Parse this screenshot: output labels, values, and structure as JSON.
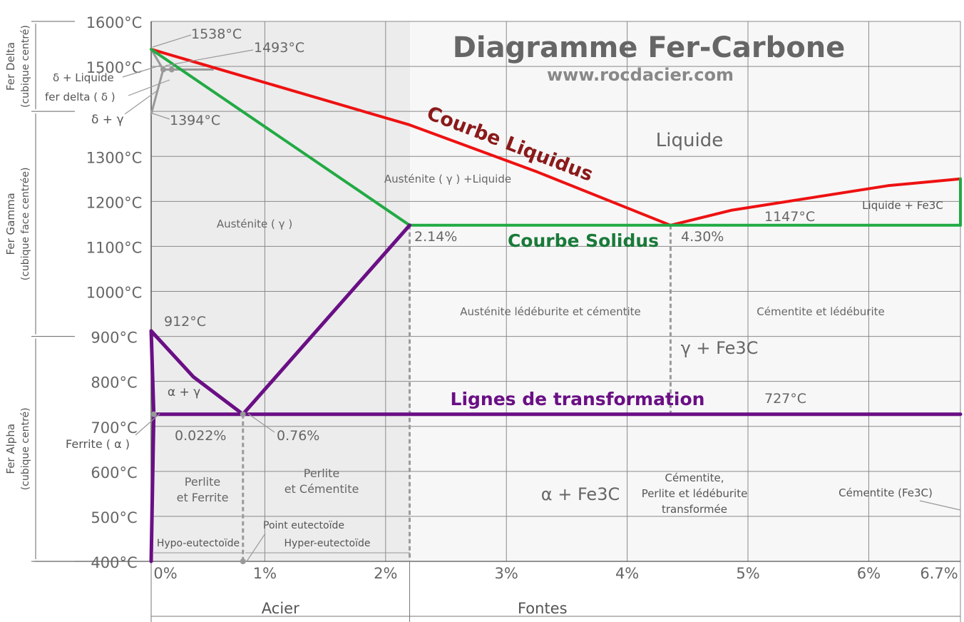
{
  "title": "Diagramme Fer-Carbone",
  "website": "www.rocdacier.com",
  "axis": {
    "x_min": 0,
    "x_max": 6.7,
    "y_min": 400,
    "y_max": 1600,
    "y_ticks": [
      {
        "value": 1600,
        "label": "1600°C"
      },
      {
        "value": 1500,
        "label": "1500°C"
      },
      {
        "value": 1300,
        "label": "1300°C"
      },
      {
        "value": 1200,
        "label": "1200°C"
      },
      {
        "value": 1100,
        "label": "1100°C"
      },
      {
        "value": 1000,
        "label": "1000°C"
      },
      {
        "value": 900,
        "label": "900°C"
      },
      {
        "value": 800,
        "label": "800°C"
      },
      {
        "value": 700,
        "label": "700°C"
      },
      {
        "value": 600,
        "label": "600°C"
      },
      {
        "value": 500,
        "label": "500°C"
      },
      {
        "value": 400,
        "label": "400°C"
      }
    ],
    "x_ticks": [
      {
        "value": 0,
        "label": "0%"
      },
      {
        "value": 1,
        "label": "1%"
      },
      {
        "value": 2,
        "label": "2%"
      },
      {
        "value": 3,
        "label": "3%"
      },
      {
        "value": 4,
        "label": "4%"
      },
      {
        "value": 5,
        "label": "5%"
      },
      {
        "value": 6,
        "label": "6%"
      },
      {
        "value": 6.7,
        "label": "6.7%"
      }
    ]
  },
  "phases_side": [
    {
      "line1": "Fer Delta",
      "line2": "(cubique centré)",
      "from": 1400,
      "to": 1600
    },
    {
      "line1": "Fer Gamma",
      "line2": "(cubique face centrée)",
      "from": 900,
      "to": 1400
    },
    {
      "line1": "Fer Alpha",
      "line2": "(cubique centré)",
      "from": 400,
      "to": 900
    }
  ],
  "bottom_ranges": [
    {
      "label": "Acier",
      "from": 0,
      "to": 2.14
    },
    {
      "label": "Fontes",
      "from": 2.14,
      "to": 6.7
    }
  ],
  "curve_labels": {
    "liquidus": "Courbe Liquidus",
    "solidus": "Courbe Solidus",
    "transformation": "Lignes de transformation"
  },
  "colors": {
    "liquidus": "#ee1111",
    "solidus": "#22aa44",
    "transformation": "#6a0f85",
    "liquidus_label": "#8b1a1a",
    "solidus_label": "#1a7a3a",
    "title": "#666666",
    "grey_lines": "#999999",
    "dashes": "#9a9a9a"
  },
  "curves": {
    "liquidus": [
      [
        0,
        1538
      ],
      [
        2.14,
        1370
      ],
      [
        3.2,
        1265
      ],
      [
        4.3,
        1147
      ],
      [
        4.8,
        1180
      ],
      [
        6.1,
        1235
      ],
      [
        6.7,
        1250
      ]
    ],
    "solidus": [
      [
        0,
        1538
      ],
      [
        2.14,
        1147
      ],
      [
        6.7,
        1147
      ]
    ],
    "liquidus_fe3c_end": [
      [
        6.7,
        1250
      ],
      [
        6.7,
        1147
      ]
    ],
    "gamma_alpha_left": [
      [
        0,
        912
      ],
      [
        0.35,
        810
      ],
      [
        0.76,
        727
      ]
    ],
    "gamma_boundary_acm": [
      [
        0.76,
        727
      ],
      [
        2.14,
        1147
      ]
    ],
    "alpha_solvus": [
      [
        0,
        912
      ],
      [
        0.022,
        727
      ],
      [
        0,
        400
      ]
    ],
    "eutectoid_line": [
      [
        0.022,
        727
      ],
      [
        6.7,
        727
      ]
    ],
    "delta_region": [
      [
        0,
        1538
      ],
      [
        0.1,
        1493
      ],
      [
        0.51,
        1493
      ]
    ],
    "delta_gamma": [
      [
        0,
        1394
      ],
      [
        0.1,
        1493
      ],
      [
        0.17,
        1493
      ]
    ]
  },
  "dashed_verticals": [
    {
      "x": 0.76,
      "from": 400,
      "to": 727
    },
    {
      "x": 2.14,
      "from": 400,
      "to": 1147
    },
    {
      "x": 4.3,
      "from": 727,
      "to": 1147
    }
  ],
  "labels": {
    "t1538": "1538°C",
    "t1493": "1493°C",
    "t1394": "1394°C",
    "t912": "912°C",
    "t1147": "1147°C",
    "t727": "727°C",
    "c214": "2.14%",
    "c430": "4.30%",
    "c0022": "0.022%",
    "c076": "0.76%",
    "delta_liquide": "δ + Liquide",
    "fer_delta": "fer delta ( δ )",
    "delta_gamma": "δ + γ",
    "liquide": "Liquide",
    "austenite_liquide": "Austénite ( γ ) +Liquide",
    "austenite": "Austénite ( γ )",
    "liquide_fe3c": "Liquide + Fe3C",
    "austenite_ledeburite": "Austénite lédéburite et cémentite",
    "cementite_ledeburite": "Cémentite et lédéburite",
    "gamma_fe3c": "γ + Fe3C",
    "alpha_gamma": "α + γ",
    "ferrite": "Ferrite ( α )",
    "perlite_ferrite_1": "Perlite",
    "perlite_ferrite_2": "et Ferrite",
    "perlite_cementite_1": "Perlite",
    "perlite_cementite_2": "et Cémentite",
    "alpha_fe3c": "α + Fe3C",
    "cementite_perlite_1": "Cémentite,",
    "cementite_perlite_2": "Perlite et lédéburite",
    "cementite_perlite_3": "transformée",
    "cementite_fe3c": "Cémentite (Fe3C)",
    "point_eutectoide": "Point eutectoïde",
    "hypo": "Hypo-eutectoïde",
    "hyper": "Hyper-eutectoïde"
  }
}
